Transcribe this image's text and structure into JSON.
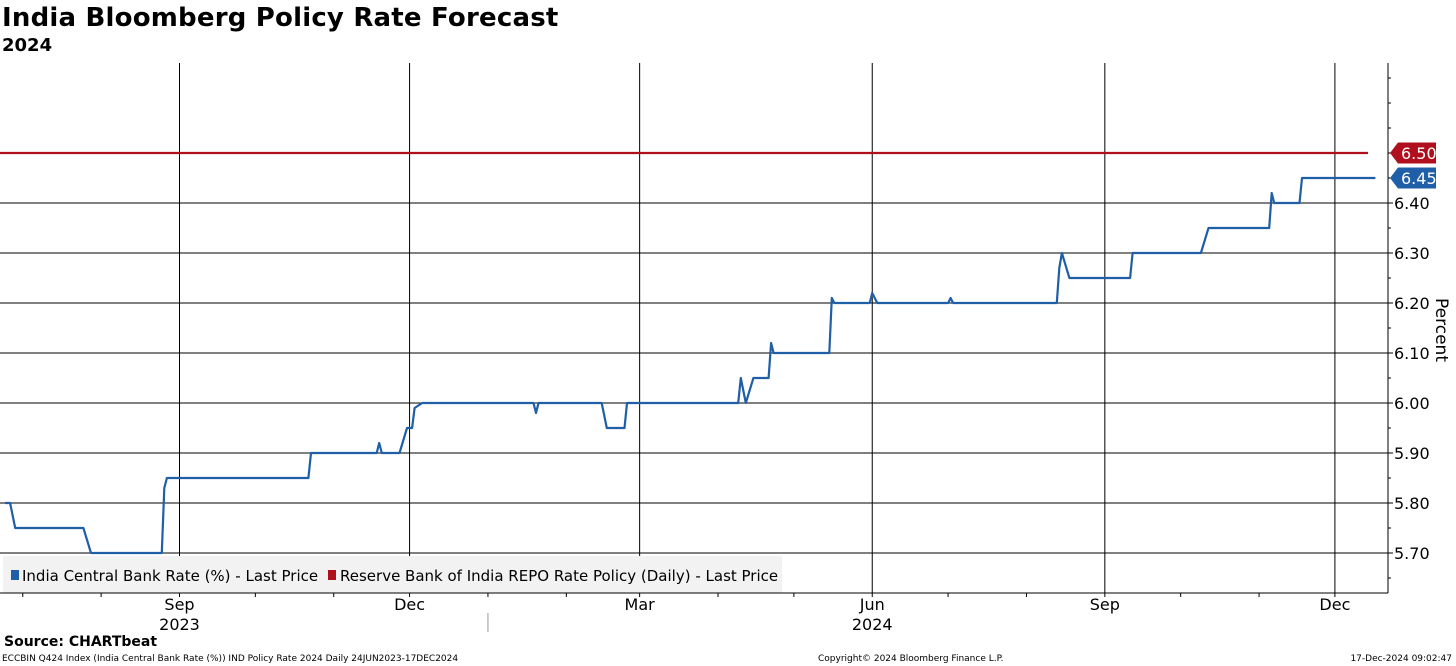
{
  "header": {
    "title": "India Bloomberg Policy Rate Forecast",
    "subtitle": "2024"
  },
  "footer": {
    "source": "Source: CHARTbeat",
    "ticker_info": "ECCBIN Q424 Index (India Central Bank Rate (%)) IND Policy Rate 2024  Daily 24JUN2023-17DEC2024",
    "copyright": "Copyright© 2024 Bloomberg Finance L.P.",
    "timestamp": "17-Dec-2024 09:02:47"
  },
  "colors": {
    "forecast_line": "#1f5fa8",
    "repo_line": "#b0101e",
    "grid": "#000000"
  },
  "chart_data": {
    "type": "line",
    "title": "India Bloomberg Policy Rate Forecast",
    "subtitle": "2024",
    "ylabel": "Percent",
    "ylim": [
      5.62,
      6.68
    ],
    "yticks": [
      5.7,
      5.8,
      5.9,
      6.0,
      6.1,
      6.2,
      6.3,
      6.4
    ],
    "ytick_labels": [
      "5.70",
      "5.80",
      "5.90",
      "6.00",
      "6.10",
      "6.20",
      "6.30",
      "6.40"
    ],
    "xlim": [
      "2023-06-22",
      "2024-12-22"
    ],
    "x_month_labels": [
      {
        "date": "2023-06-16",
        "label": "Jun"
      },
      {
        "date": "2023-09-01",
        "label": "Sep"
      },
      {
        "date": "2023-12-01",
        "label": "Dec"
      },
      {
        "date": "2024-03-01",
        "label": "Mar"
      },
      {
        "date": "2024-06-01",
        "label": "Jun"
      },
      {
        "date": "2024-09-01",
        "label": "Sep"
      },
      {
        "date": "2024-12-01",
        "label": "Dec"
      }
    ],
    "x_year_labels": [
      {
        "date": "2023-09-01",
        "label": "2023"
      },
      {
        "date": "2024-06-01",
        "label": "2024"
      }
    ],
    "legend": {
      "placement": "bottom-left",
      "entries": [
        "India Central Bank Rate (%) - Last Price",
        "Reserve Bank of India REPO Rate Policy (Daily) - Last Price"
      ]
    },
    "series": [
      {
        "name": "India Central Bank Rate (%) - Last Price",
        "last_value_label": "6.45",
        "points": [
          [
            "2023-06-24",
            5.8
          ],
          [
            "2023-06-26",
            5.8
          ],
          [
            "2023-06-28",
            5.75
          ],
          [
            "2023-07-25",
            5.75
          ],
          [
            "2023-07-28",
            5.7
          ],
          [
            "2023-08-25",
            5.7
          ],
          [
            "2023-08-26",
            5.83
          ],
          [
            "2023-08-27",
            5.85
          ],
          [
            "2023-10-22",
            5.85
          ],
          [
            "2023-10-23",
            5.9
          ],
          [
            "2023-11-18",
            5.9
          ],
          [
            "2023-11-19",
            5.92
          ],
          [
            "2023-11-20",
            5.9
          ],
          [
            "2023-11-27",
            5.9
          ],
          [
            "2023-11-30",
            5.95
          ],
          [
            "2023-12-02",
            5.95
          ],
          [
            "2023-12-03",
            5.99
          ],
          [
            "2023-12-06",
            6.0
          ],
          [
            "2024-01-19",
            6.0
          ],
          [
            "2024-01-20",
            5.98
          ],
          [
            "2024-01-21",
            6.0
          ],
          [
            "2024-02-15",
            6.0
          ],
          [
            "2024-02-17",
            5.95
          ],
          [
            "2024-02-24",
            5.95
          ],
          [
            "2024-02-25",
            6.0
          ],
          [
            "2024-04-09",
            6.0
          ],
          [
            "2024-04-10",
            6.05
          ],
          [
            "2024-04-12",
            6.0
          ],
          [
            "2024-04-15",
            6.05
          ],
          [
            "2024-04-21",
            6.05
          ],
          [
            "2024-04-22",
            6.12
          ],
          [
            "2024-04-23",
            6.1
          ],
          [
            "2024-05-15",
            6.1
          ],
          [
            "2024-05-16",
            6.21
          ],
          [
            "2024-05-17",
            6.2
          ],
          [
            "2024-05-31",
            6.2
          ],
          [
            "2024-06-01",
            6.22
          ],
          [
            "2024-06-03",
            6.2
          ],
          [
            "2024-07-01",
            6.2
          ],
          [
            "2024-07-02",
            6.21
          ],
          [
            "2024-07-03",
            6.2
          ],
          [
            "2024-08-13",
            6.2
          ],
          [
            "2024-08-14",
            6.27
          ],
          [
            "2024-08-15",
            6.3
          ],
          [
            "2024-08-18",
            6.25
          ],
          [
            "2024-09-11",
            6.25
          ],
          [
            "2024-09-12",
            6.3
          ],
          [
            "2024-10-09",
            6.3
          ],
          [
            "2024-10-12",
            6.35
          ],
          [
            "2024-11-05",
            6.35
          ],
          [
            "2024-11-06",
            6.42
          ],
          [
            "2024-11-07",
            6.4
          ],
          [
            "2024-11-17",
            6.4
          ],
          [
            "2024-11-18",
            6.45
          ],
          [
            "2024-12-17",
            6.45
          ]
        ]
      },
      {
        "name": "Reserve Bank of India REPO Rate Policy (Daily) - Last Price",
        "last_value_label": "6.50",
        "points": [
          [
            "2023-06-22",
            6.5
          ],
          [
            "2024-12-17",
            6.5
          ]
        ]
      }
    ]
  }
}
